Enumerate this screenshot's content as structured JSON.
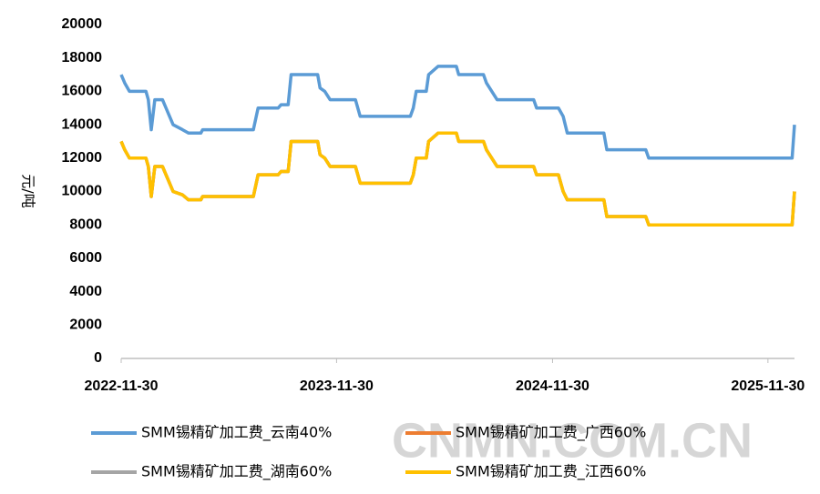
{
  "chart_data": {
    "type": "line",
    "y_label": "元/吨",
    "watermark": "CNMN.COM.CN",
    "x": [
      "2022-11-30",
      "2022-12-06",
      "2022-12-14",
      "2023-01-11",
      "2023-01-15",
      "2023-01-20",
      "2023-01-26",
      "2023-02-08",
      "2023-02-14",
      "2023-02-20",
      "2023-02-26",
      "2023-03-14",
      "2023-03-24",
      "2023-04-14",
      "2023-04-17",
      "2023-07-12",
      "2023-07-20",
      "2023-08-23",
      "2023-08-28",
      "2023-09-09",
      "2023-09-14",
      "2023-10-29",
      "2023-11-02",
      "2023-11-10",
      "2023-11-19",
      "2024-01-01",
      "2024-01-09",
      "2024-04-03",
      "2024-04-08",
      "2024-04-13",
      "2024-04-30",
      "2024-05-04",
      "2024-05-20",
      "2024-06-20",
      "2024-06-24",
      "2024-08-05",
      "2024-08-10",
      "2024-08-28",
      "2024-10-29",
      "2024-11-03",
      "2024-12-10",
      "2024-12-18",
      "2024-12-25",
      "2025-02-25",
      "2025-03-02",
      "2025-05-07",
      "2025-05-12",
      "2026-01-10",
      "2026-01-14"
    ],
    "series": [
      {
        "name": "SMM锡精矿加工费_云南40%",
        "color": "#5b9bd5",
        "values": [
          17000,
          16500,
          16000,
          16000,
          15500,
          13700,
          15500,
          15500,
          15000,
          14500,
          14000,
          13700,
          13500,
          13500,
          13700,
          13700,
          15000,
          15000,
          15200,
          15200,
          17000,
          17000,
          16200,
          16000,
          15500,
          15500,
          14500,
          14500,
          15000,
          16000,
          16000,
          17000,
          17500,
          17500,
          17000,
          17000,
          16500,
          15500,
          15500,
          15000,
          15000,
          14500,
          13500,
          13500,
          12500,
          12500,
          12000,
          12000,
          14000
        ]
      },
      {
        "name": "SMM锡精矿加工费_广西60%",
        "color": "#ed7d31",
        "values": [
          13000,
          12500,
          12000,
          12000,
          11500,
          9700,
          11500,
          11500,
          11000,
          10500,
          10000,
          9800,
          9500,
          9500,
          9700,
          9700,
          11000,
          11000,
          11200,
          11200,
          13000,
          13000,
          12200,
          12000,
          11500,
          11500,
          10500,
          10500,
          11000,
          12000,
          12000,
          13000,
          13500,
          13500,
          13000,
          13000,
          12500,
          11500,
          11500,
          11000,
          11000,
          10000,
          9500,
          9500,
          8500,
          8500,
          8000,
          8000,
          10000
        ]
      },
      {
        "name": "SMM锡精矿加工费_湖南60%",
        "color": "#a5a5a5",
        "values": [
          13000,
          12500,
          12000,
          12000,
          11500,
          9700,
          11500,
          11500,
          11000,
          10500,
          10000,
          9800,
          9500,
          9500,
          9700,
          9700,
          11000,
          11000,
          11200,
          11200,
          13000,
          13000,
          12200,
          12000,
          11500,
          11500,
          10500,
          10500,
          11000,
          12000,
          12000,
          13000,
          13500,
          13500,
          13000,
          13000,
          12500,
          11500,
          11500,
          11000,
          11000,
          10000,
          9500,
          9500,
          8500,
          8500,
          8000,
          8000,
          10000
        ]
      },
      {
        "name": "SMM锡精矿加工费_江西60%",
        "color": "#ffc000",
        "values": [
          13000,
          12500,
          12000,
          12000,
          11500,
          9700,
          11500,
          11500,
          11000,
          10500,
          10000,
          9800,
          9500,
          9500,
          9700,
          9700,
          11000,
          11000,
          11200,
          11200,
          13000,
          13000,
          12200,
          12000,
          11500,
          11500,
          10500,
          10500,
          11000,
          12000,
          12000,
          13000,
          13500,
          13500,
          13000,
          13000,
          12500,
          11500,
          11500,
          11000,
          11000,
          10000,
          9500,
          9500,
          8500,
          8500,
          8000,
          8000,
          10000
        ]
      }
    ],
    "xlim": [
      "2022-11-30",
      "2026-01-14"
    ],
    "xticks": [
      "2022-11-30",
      "2023-11-30",
      "2024-11-30",
      "2025-11-30"
    ],
    "ylim": [
      0,
      20000
    ],
    "yticks": [
      0,
      2000,
      4000,
      6000,
      8000,
      10000,
      12000,
      14000,
      16000,
      18000,
      20000
    ],
    "grid": false
  }
}
